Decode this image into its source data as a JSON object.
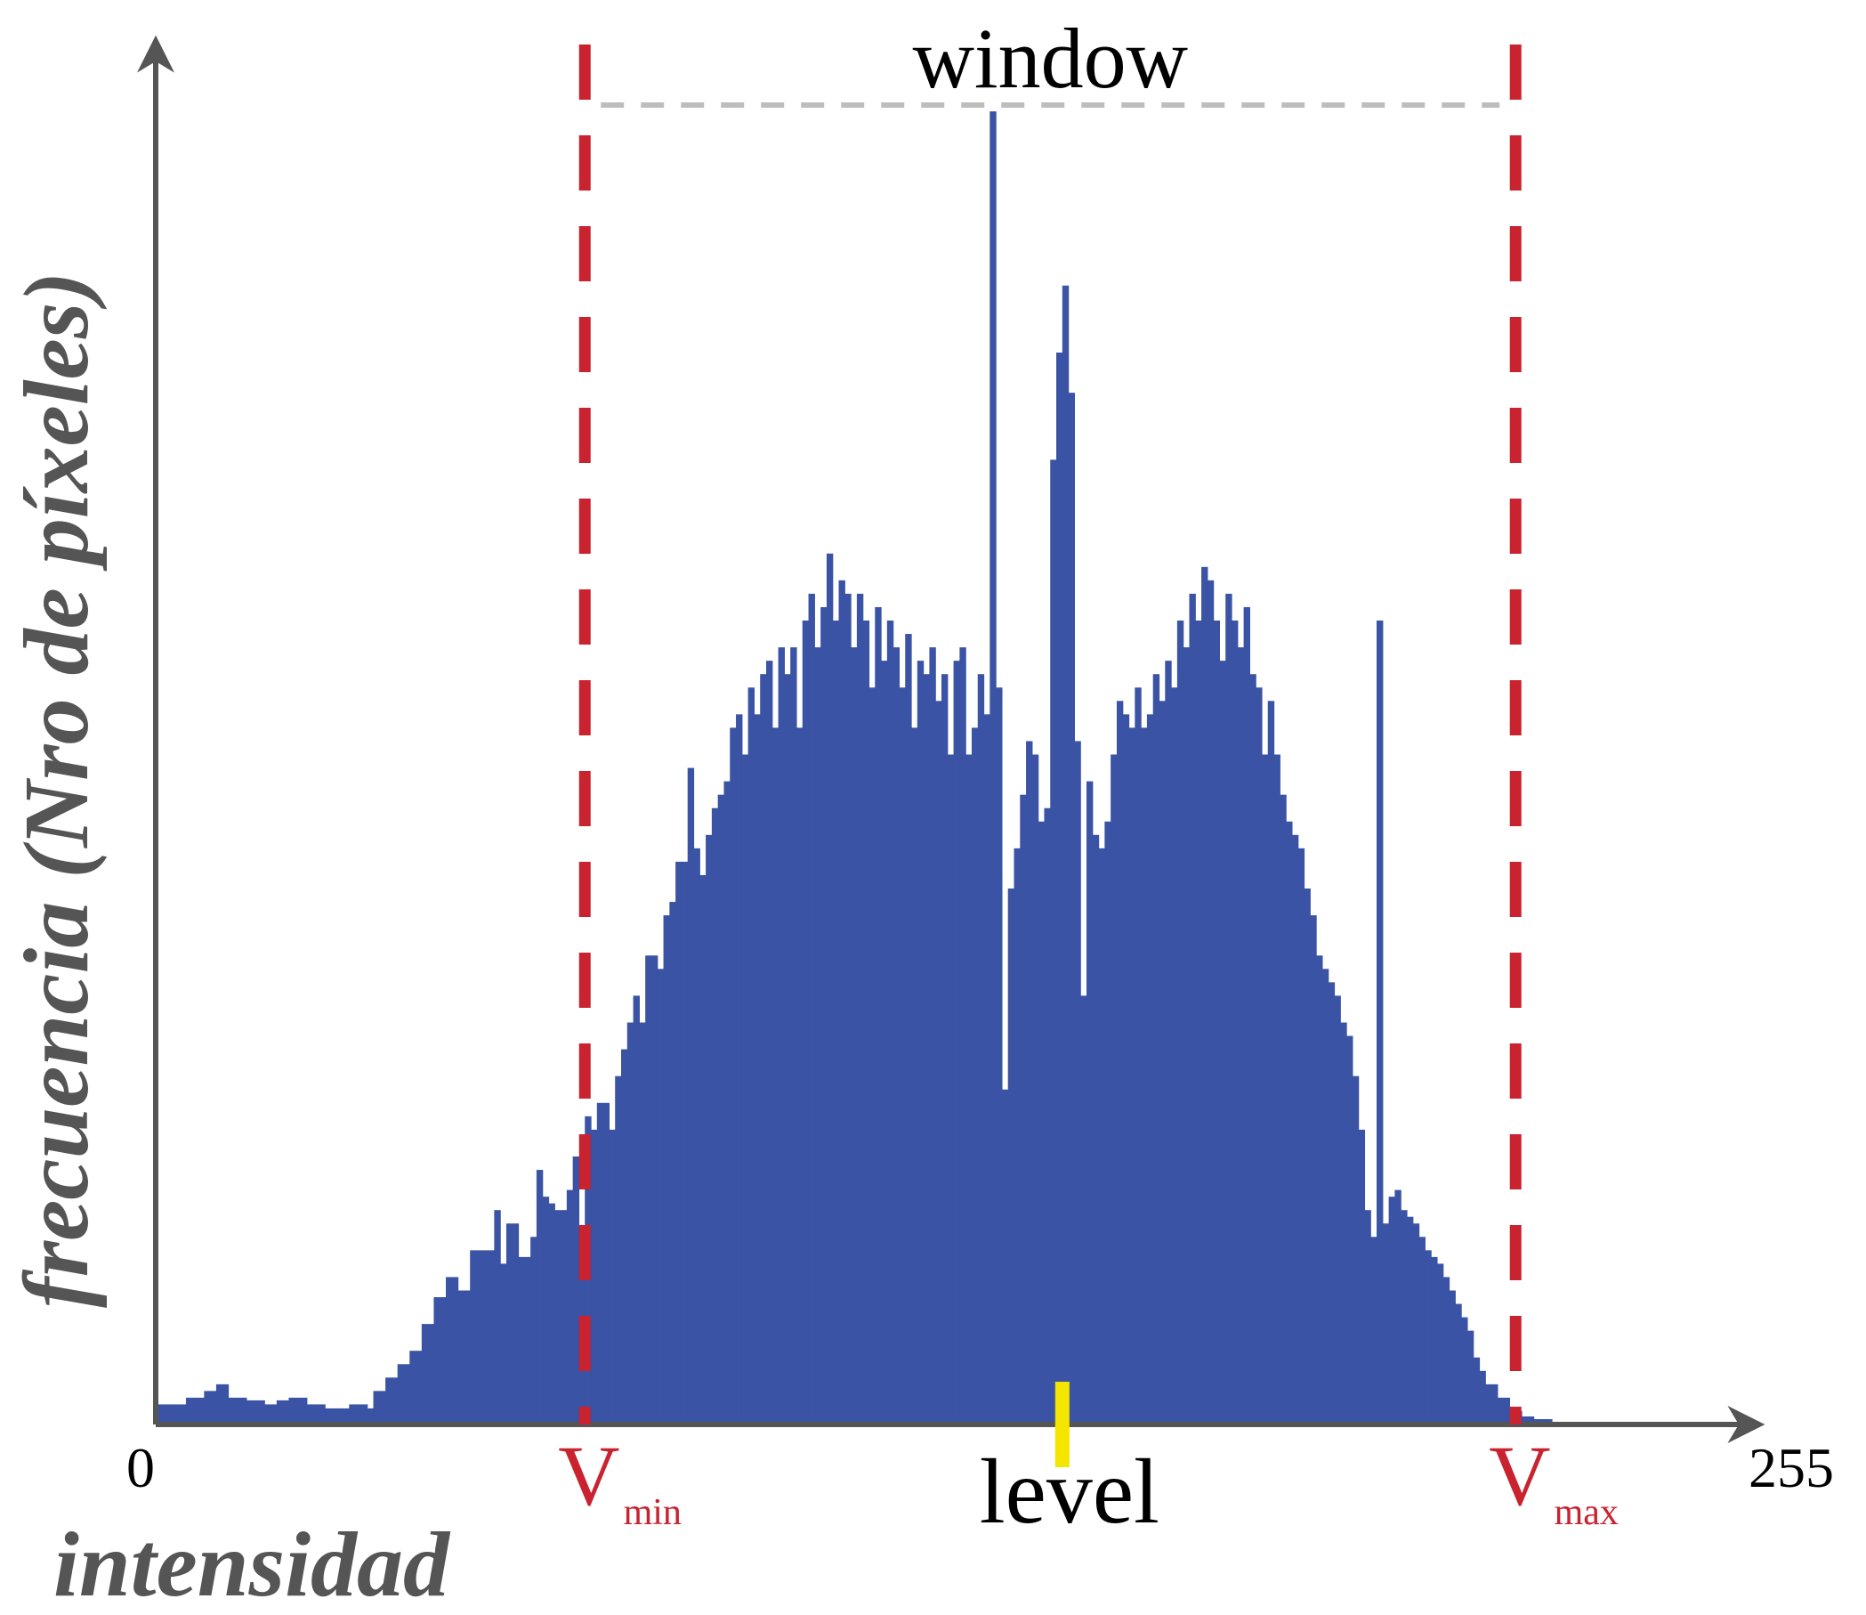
{
  "chart_data": {
    "type": "bar",
    "title": "",
    "xlabel": "intensidad",
    "ylabel": "frecuencia (Nro de píxeles)",
    "x_tick_labels": [
      "0",
      "255"
    ],
    "xlim": [
      0,
      255
    ],
    "ylim": [
      0,
      1
    ],
    "grid": false,
    "legend": "none",
    "series": [
      {
        "name": "",
        "bins": [
          [
            0,
            0.015
          ],
          [
            5,
            0.02
          ],
          [
            8,
            0.025
          ],
          [
            10,
            0.03
          ],
          [
            12,
            0.02
          ],
          [
            15,
            0.018
          ],
          [
            18,
            0.015
          ],
          [
            20,
            0.018
          ],
          [
            22,
            0.02
          ],
          [
            25,
            0.015
          ],
          [
            28,
            0.012
          ],
          [
            30,
            0.012
          ],
          [
            32,
            0.015
          ],
          [
            35,
            0.012
          ],
          [
            36,
            0.025
          ],
          [
            38,
            0.035
          ],
          [
            40,
            0.045
          ],
          [
            42,
            0.055
          ],
          [
            44,
            0.075
          ],
          [
            46,
            0.095
          ],
          [
            48,
            0.11
          ],
          [
            50,
            0.1
          ],
          [
            52,
            0.13
          ],
          [
            54,
            0.13
          ],
          [
            56,
            0.16
          ],
          [
            57,
            0.12
          ],
          [
            58,
            0.15
          ],
          [
            60,
            0.125
          ],
          [
            62,
            0.14
          ],
          [
            63,
            0.19
          ],
          [
            64,
            0.17
          ],
          [
            65,
            0.165
          ],
          [
            66,
            0.16
          ],
          [
            68,
            0.175
          ],
          [
            69,
            0.2
          ],
          [
            70,
            0.145
          ],
          [
            71,
            0.23
          ],
          [
            72,
            0.22
          ],
          [
            73,
            0.24
          ],
          [
            74,
            0.24
          ],
          [
            75,
            0.22
          ],
          [
            76,
            0.26
          ],
          [
            77,
            0.28
          ],
          [
            78,
            0.3
          ],
          [
            79,
            0.32
          ],
          [
            80,
            0.3
          ],
          [
            81,
            0.35
          ],
          [
            82,
            0.35
          ],
          [
            83,
            0.34
          ],
          [
            84,
            0.38
          ],
          [
            85,
            0.39
          ],
          [
            86,
            0.42
          ],
          [
            87,
            0.42
          ],
          [
            88,
            0.49
          ],
          [
            89,
            0.43
          ],
          [
            90,
            0.41
          ],
          [
            91,
            0.44
          ],
          [
            92,
            0.46
          ],
          [
            93,
            0.47
          ],
          [
            94,
            0.48
          ],
          [
            95,
            0.52
          ],
          [
            96,
            0.53
          ],
          [
            97,
            0.5
          ],
          [
            98,
            0.55
          ],
          [
            99,
            0.53
          ],
          [
            100,
            0.56
          ],
          [
            101,
            0.57
          ],
          [
            102,
            0.52
          ],
          [
            103,
            0.58
          ],
          [
            104,
            0.56
          ],
          [
            105,
            0.58
          ],
          [
            106,
            0.52
          ],
          [
            107,
            0.6
          ],
          [
            108,
            0.62
          ],
          [
            109,
            0.58
          ],
          [
            110,
            0.61
          ],
          [
            111,
            0.65
          ],
          [
            112,
            0.6
          ],
          [
            113,
            0.63
          ],
          [
            114,
            0.62
          ],
          [
            115,
            0.58
          ],
          [
            116,
            0.62
          ],
          [
            117,
            0.6
          ],
          [
            118,
            0.55
          ],
          [
            119,
            0.61
          ],
          [
            120,
            0.57
          ],
          [
            121,
            0.6
          ],
          [
            122,
            0.58
          ],
          [
            123,
            0.55
          ],
          [
            124,
            0.59
          ],
          [
            125,
            0.52
          ],
          [
            126,
            0.57
          ],
          [
            127,
            0.56
          ],
          [
            128,
            0.58
          ],
          [
            129,
            0.54
          ],
          [
            130,
            0.56
          ],
          [
            131,
            0.5
          ],
          [
            132,
            0.57
          ],
          [
            133,
            0.58
          ],
          [
            134,
            0.5
          ],
          [
            135,
            0.52
          ],
          [
            136,
            0.56
          ],
          [
            137,
            0.53
          ],
          [
            138,
            0.98
          ],
          [
            139,
            0.55
          ],
          [
            140,
            0.25
          ],
          [
            141,
            0.4
          ],
          [
            142,
            0.43
          ],
          [
            143,
            0.47
          ],
          [
            144,
            0.51
          ],
          [
            145,
            0.5
          ],
          [
            146,
            0.45
          ],
          [
            147,
            0.46
          ],
          [
            148,
            0.72
          ],
          [
            149,
            0.8
          ],
          [
            150,
            0.85
          ],
          [
            151,
            0.77
          ],
          [
            152,
            0.51
          ],
          [
            153,
            0.32
          ],
          [
            154,
            0.48
          ],
          [
            155,
            0.44
          ],
          [
            156,
            0.43
          ],
          [
            157,
            0.45
          ],
          [
            158,
            0.5
          ],
          [
            159,
            0.54
          ],
          [
            160,
            0.53
          ],
          [
            161,
            0.52
          ],
          [
            162,
            0.55
          ],
          [
            163,
            0.52
          ],
          [
            164,
            0.53
          ],
          [
            165,
            0.56
          ],
          [
            166,
            0.54
          ],
          [
            167,
            0.57
          ],
          [
            168,
            0.55
          ],
          [
            169,
            0.6
          ],
          [
            170,
            0.58
          ],
          [
            171,
            0.62
          ],
          [
            172,
            0.6
          ],
          [
            173,
            0.64
          ],
          [
            174,
            0.63
          ],
          [
            175,
            0.6
          ],
          [
            176,
            0.57
          ],
          [
            177,
            0.62
          ],
          [
            178,
            0.6
          ],
          [
            179,
            0.58
          ],
          [
            180,
            0.61
          ],
          [
            181,
            0.56
          ],
          [
            182,
            0.55
          ],
          [
            183,
            0.5
          ],
          [
            184,
            0.54
          ],
          [
            185,
            0.5
          ],
          [
            186,
            0.47
          ],
          [
            187,
            0.45
          ],
          [
            188,
            0.44
          ],
          [
            189,
            0.43
          ],
          [
            190,
            0.4
          ],
          [
            191,
            0.38
          ],
          [
            192,
            0.35
          ],
          [
            193,
            0.34
          ],
          [
            194,
            0.33
          ],
          [
            195,
            0.32
          ],
          [
            196,
            0.3
          ],
          [
            197,
            0.29
          ],
          [
            198,
            0.26
          ],
          [
            199,
            0.22
          ],
          [
            200,
            0.16
          ],
          [
            201,
            0.14
          ],
          [
            202,
            0.6
          ],
          [
            203,
            0.15
          ],
          [
            204,
            0.17
          ],
          [
            205,
            0.175
          ],
          [
            206,
            0.16
          ],
          [
            207,
            0.155
          ],
          [
            208,
            0.15
          ],
          [
            209,
            0.14
          ],
          [
            210,
            0.13
          ],
          [
            211,
            0.125
          ],
          [
            212,
            0.12
          ],
          [
            213,
            0.11
          ],
          [
            214,
            0.1
          ],
          [
            215,
            0.09
          ],
          [
            216,
            0.08
          ],
          [
            217,
            0.07
          ],
          [
            218,
            0.05
          ],
          [
            219,
            0.04
          ],
          [
            220,
            0.03
          ],
          [
            222,
            0.02
          ],
          [
            224,
            0.01
          ],
          [
            226,
            0.006
          ],
          [
            228,
            0.004
          ],
          [
            231,
            0
          ]
        ],
        "color": "#3a53a4"
      }
    ],
    "annotations": {
      "v_min": {
        "x": 71,
        "label": "V",
        "subscript": "min",
        "color": "#c8232f"
      },
      "v_max": {
        "x": 225,
        "label": "V",
        "subscript": "max",
        "color": "#c8232f"
      },
      "level": {
        "x": 150,
        "label": "level",
        "color": "#f5e600"
      },
      "window": {
        "from": 71,
        "to": 225,
        "label": "window",
        "color": "#bdbdbd"
      }
    },
    "axis_color": "#555555",
    "label_color": "#555555"
  }
}
